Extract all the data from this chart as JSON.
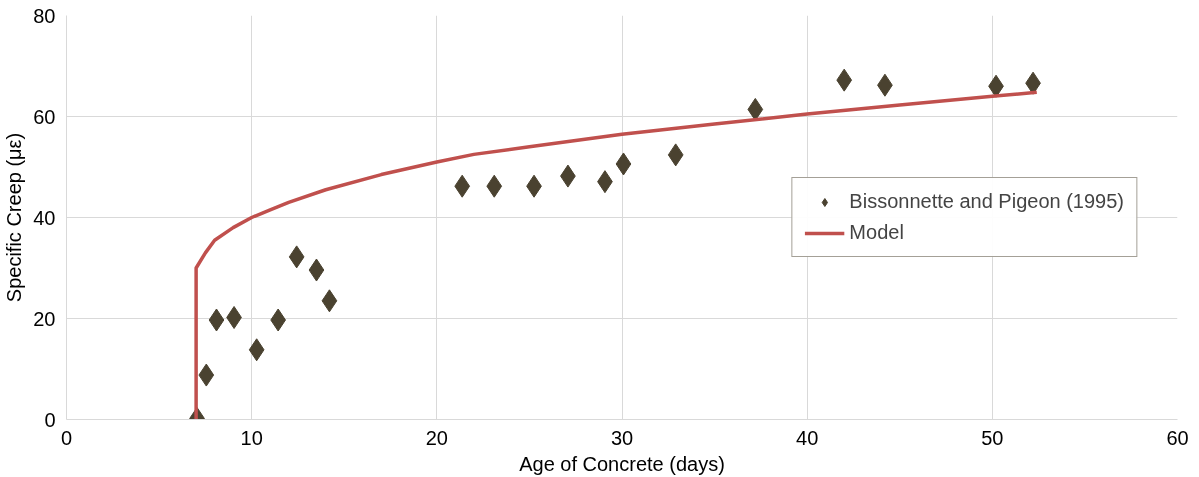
{
  "chart_data": {
    "type": "scatter",
    "xlabel": "Age of Concrete (days)",
    "ylabel": "Specific Creep (με)",
    "xlim": [
      0,
      60
    ],
    "xticks": [
      0,
      10,
      20,
      30,
      40,
      50,
      60
    ],
    "ylim": [
      0,
      80
    ],
    "yticks": [
      0,
      20,
      40,
      60,
      80
    ],
    "grid": true,
    "legend": "right",
    "series": [
      {
        "name": "Bissonnette and Pigeon (1995)",
        "marker": "diamond",
        "color": "#4a4230",
        "x": [
          7.05,
          7.55,
          8.1,
          9.05,
          10.27,
          11.43,
          12.43,
          13.5,
          14.2,
          21.37,
          23.1,
          25.25,
          27.08,
          29.08,
          30.08,
          32.9,
          37.2,
          42.0,
          44.2,
          50.2,
          52.2
        ],
        "values": [
          0.2,
          8.8,
          19.7,
          20.2,
          13.8,
          19.7,
          32.2,
          29.6,
          23.5,
          46.2,
          46.2,
          46.2,
          48.2,
          47.1,
          50.6,
          52.4,
          61.4,
          67.2,
          66.2,
          66.0,
          66.6
        ]
      },
      {
        "name": "Model",
        "type": "line",
        "marker": "none",
        "line_style": "solid",
        "color": "#c0504d",
        "x": [
          7,
          7,
          7.5,
          8,
          9,
          10,
          11,
          12,
          14,
          17,
          20,
          22,
          25,
          28,
          30,
          35,
          40,
          45,
          50,
          52.4
        ],
        "values": [
          0,
          30,
          33,
          35.5,
          38,
          40,
          41.5,
          43,
          45.5,
          48.5,
          51,
          52.5,
          54,
          55.5,
          56.5,
          58.5,
          60.5,
          62.3,
          64,
          64.8
        ]
      }
    ]
  }
}
